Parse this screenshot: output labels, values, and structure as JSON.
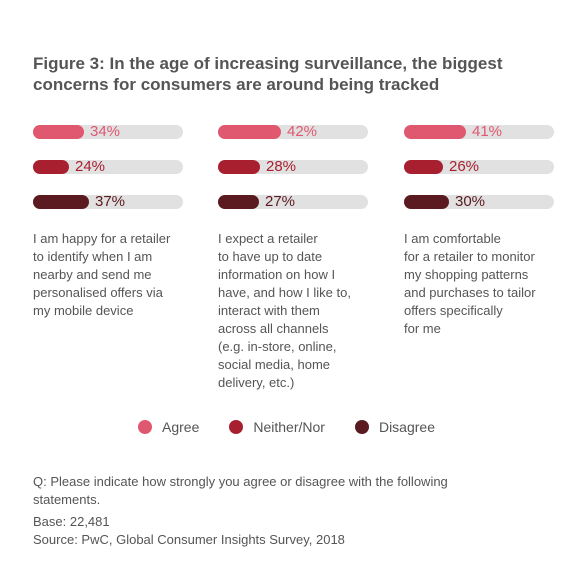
{
  "title": {
    "lines": [
      "Figure 3: In the age of increasing surveillance, the biggest",
      "concerns for consumers are around being tracked"
    ]
  },
  "colors": {
    "agree": "#e05870",
    "neither": "#a82030",
    "disagree": "#5a1a1f",
    "track": "#e1e1e1"
  },
  "chart_data": {
    "type": "bar",
    "title": "Figure 3: In the age of increasing surveillance, the biggest concerns for consumers are around being tracked",
    "unit": "%",
    "ylim": [
      0,
      100
    ],
    "categories": [
      "I am happy for a retailer to identify when I am nearby and send me personalised offers via my mobile device",
      "I expect a retailer to have up to date information on how I have, and how I like to, interact with them across all channels (e.g. in-store, online, social media, home delivery, etc.)",
      "I am comfortable for a retailer to monitor my shopping patterns and purchases to tailor offers specifically for me"
    ],
    "category_lines": [
      [
        "I am happy for a retailer",
        "to identify when I am",
        "nearby and send me",
        "personalised offers via",
        "my mobile device"
      ],
      [
        "I expect a retailer",
        "to have up to date",
        "information on how I",
        "have, and how I like to,",
        "interact with them",
        "across all channels",
        "(e.g. in-store, online,",
        "social media, home",
        "delivery, etc.)"
      ],
      [
        "I am comfortable",
        "for a retailer to monitor",
        "my shopping patterns",
        "and purchases to tailor",
        "offers specifically",
        "for me"
      ]
    ],
    "series": [
      {
        "name": "Agree",
        "values": [
          34,
          42,
          41
        ],
        "labels": [
          "34%",
          "42%",
          "41%"
        ]
      },
      {
        "name": "Neither/Nor",
        "values": [
          24,
          28,
          26
        ],
        "labels": [
          "24%",
          "28%",
          "26%"
        ]
      },
      {
        "name": "Disagree",
        "values": [
          37,
          27,
          30
        ],
        "labels": [
          "37%",
          "27%",
          "30%"
        ]
      }
    ],
    "legend": "bottom-center"
  },
  "footer": {
    "question_lines": [
      "Q: Please indicate how strongly you agree or disagree with the following",
      "statements."
    ],
    "base": "Base: 22,481",
    "source": "Source: PwC, Global Consumer Insights Survey, 2018"
  }
}
